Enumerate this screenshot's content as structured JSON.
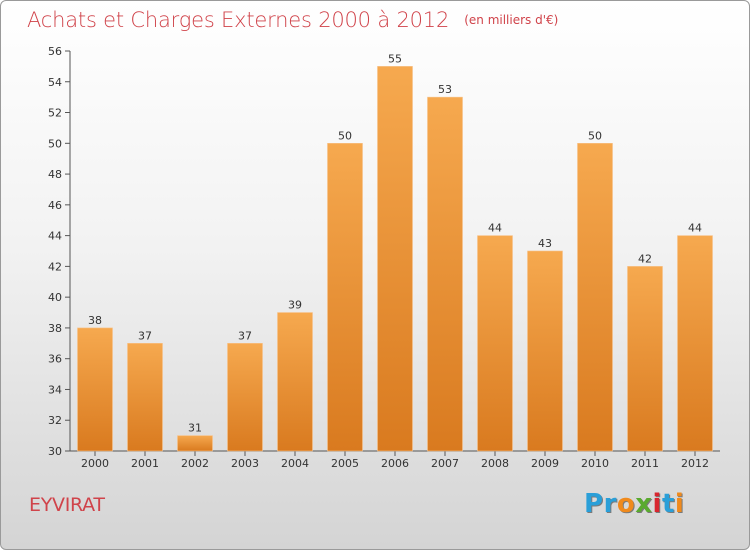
{
  "chart_data": {
    "type": "bar",
    "title": "Achats et Charges Externes 2000 à 2012",
    "subtitle": "(en milliers d'€)",
    "xlabel": "",
    "ylabel": "",
    "categories": [
      "2000",
      "2001",
      "2002",
      "2003",
      "2004",
      "2005",
      "2006",
      "2007",
      "2008",
      "2009",
      "2010",
      "2011",
      "2012"
    ],
    "values": [
      38,
      37,
      31,
      37,
      39,
      50,
      55,
      53,
      44,
      43,
      50,
      42,
      44
    ],
    "ylim": [
      30,
      56
    ],
    "yticks": [
      30,
      32,
      34,
      36,
      38,
      40,
      42,
      44,
      46,
      48,
      50,
      52,
      54,
      56
    ],
    "grid": false,
    "legend": "none",
    "bar_color": "#f0a045"
  },
  "caption": {
    "city": "EYVIRAT",
    "logo_letters": [
      {
        "char": "P",
        "color": "#2a9fd8"
      },
      {
        "char": "r",
        "color": "#2a9fd8"
      },
      {
        "char": "o",
        "color": "#f08a1c"
      },
      {
        "char": "x",
        "color": "#5aaa2f"
      },
      {
        "char": "i",
        "color": "#d8262f"
      },
      {
        "char": "t",
        "color": "#2a9fd8"
      },
      {
        "char": "i",
        "color": "#f08a1c"
      }
    ]
  }
}
